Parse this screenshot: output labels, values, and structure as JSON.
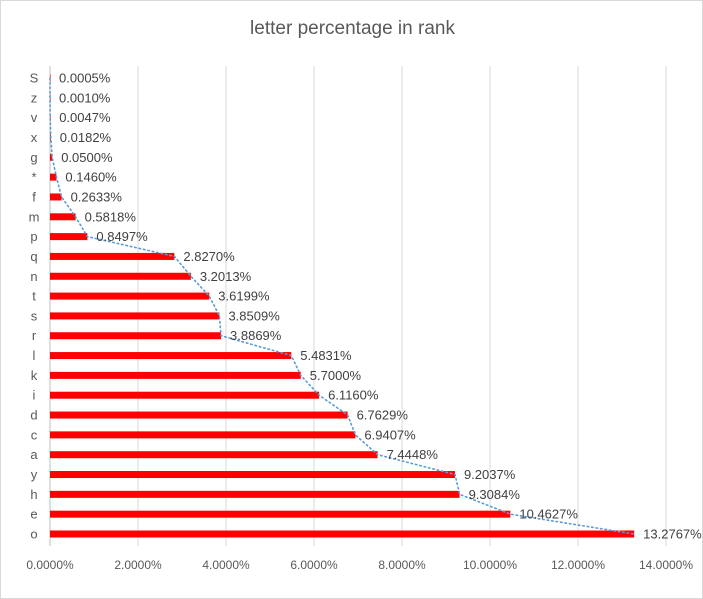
{
  "chart_data": {
    "type": "bar",
    "orientation": "horizontal",
    "title": "letter percentage in rank",
    "categories": [
      "o",
      "e",
      "h",
      "y",
      "a",
      "c",
      "d",
      "i",
      "k",
      "l",
      "r",
      "s",
      "t",
      "n",
      "q",
      "p",
      "m",
      "f",
      "*",
      "g",
      "x",
      "v",
      "z",
      "S"
    ],
    "values": [
      13.2767,
      10.4627,
      9.3084,
      9.2037,
      7.4448,
      6.9407,
      6.7629,
      6.116,
      5.7,
      5.4831,
      3.8869,
      3.8509,
      3.6199,
      3.2013,
      2.827,
      0.8497,
      0.5818,
      0.2633,
      0.146,
      0.05,
      0.0182,
      0.0047,
      0.001,
      0.0005
    ],
    "data_labels": [
      "13.2767%",
      "10.4627%",
      "9.3084%",
      "9.2037%",
      "7.4448%",
      "6.9407%",
      "6.7629%",
      "6.1160%",
      "5.7000%",
      "5.4831%",
      "3.8869%",
      "3.8509%",
      "3.6199%",
      "3.2013%",
      "2.8270%",
      "0.8497%",
      "0.5818%",
      "0.2633%",
      "0.1460%",
      "0.0500%",
      "0.0182%",
      "0.0047%",
      "0.0010%",
      "0.0005%"
    ],
    "xlim": [
      0,
      14
    ],
    "x_ticks": [
      0,
      2,
      4,
      6,
      8,
      10,
      12,
      14
    ],
    "x_tick_labels": [
      "0.0000%",
      "2.0000%",
      "4.0000%",
      "6.0000%",
      "8.0000%",
      "10.0000%",
      "12.0000%",
      "14.0000%"
    ],
    "grid": true,
    "legend": "none",
    "trendline": "dotted",
    "colors": {
      "bar": "#ff0000",
      "trendline": "#5b9bd5",
      "grid": "#d9d9d9",
      "text": "#595959"
    }
  }
}
